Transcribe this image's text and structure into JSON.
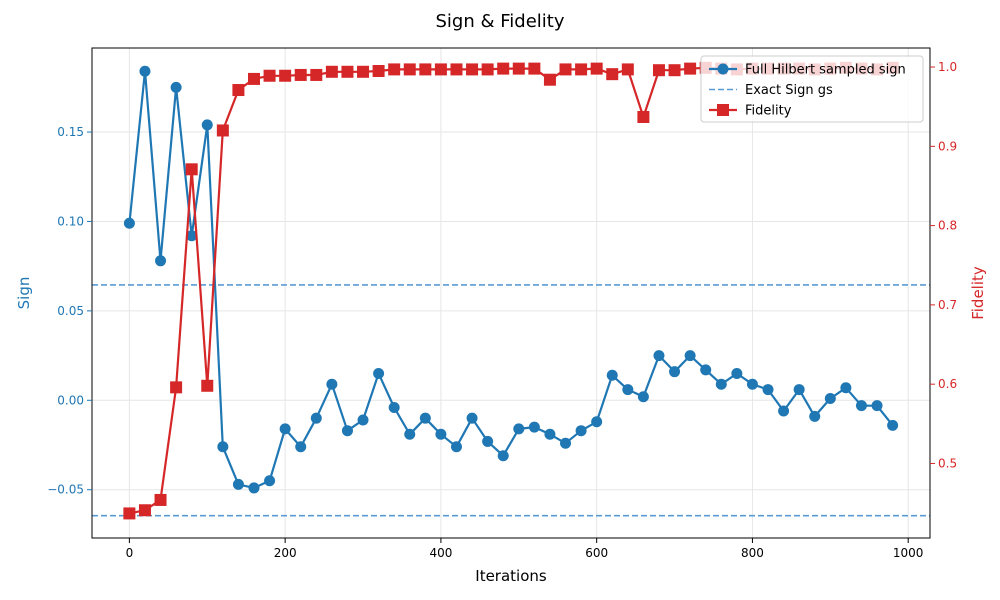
{
  "chart_data": {
    "type": "line",
    "title": "Sign & Fidelity",
    "xlabel": "Iterations",
    "ylabel_left": "Sign",
    "ylabel_right": "Fidelity",
    "xlim": [
      -48,
      1028
    ],
    "ylim_left": [
      -0.077,
      0.197
    ],
    "ylim_right": [
      0.406,
      1.024
    ],
    "x_ticks": [
      0,
      200,
      400,
      600,
      800,
      1000
    ],
    "y_ticks_left": [
      -0.05,
      0.0,
      0.05,
      0.1,
      0.15
    ],
    "y_tick_labels_left": [
      "−0.05",
      "0.00",
      "0.05",
      "0.10",
      "0.15"
    ],
    "y_ticks_right": [
      0.5,
      0.6,
      0.7,
      0.8,
      0.9,
      1.0
    ],
    "y_tick_labels_right": [
      "0.5",
      "0.6",
      "0.7",
      "0.8",
      "0.9",
      "1.0"
    ],
    "grid": true,
    "legend_position": "top-right",
    "colors": {
      "sign": "#1f77b4",
      "exact": "#5b9bd5",
      "fidelity": "#d62728"
    },
    "x": [
      0,
      20,
      40,
      60,
      80,
      100,
      120,
      140,
      160,
      180,
      200,
      220,
      240,
      260,
      280,
      300,
      320,
      340,
      360,
      380,
      400,
      420,
      440,
      460,
      480,
      500,
      520,
      540,
      560,
      580,
      600,
      620,
      640,
      660,
      680,
      700,
      720,
      740,
      760,
      780,
      800,
      820,
      840,
      860,
      880,
      900,
      920,
      940,
      960,
      980
    ],
    "series": [
      {
        "name": "Full Hilbert sampled sign",
        "axis": "left",
        "marker": "circle",
        "values": [
          0.099,
          0.184,
          0.078,
          0.175,
          0.092,
          0.154,
          -0.026,
          -0.047,
          -0.049,
          -0.045,
          -0.016,
          -0.026,
          -0.01,
          0.009,
          -0.017,
          -0.011,
          0.015,
          -0.004,
          -0.019,
          -0.01,
          -0.019,
          -0.026,
          -0.01,
          -0.023,
          -0.031,
          -0.016,
          -0.015,
          -0.019,
          -0.024,
          -0.017,
          -0.012,
          0.014,
          0.006,
          0.002,
          0.025,
          0.016,
          0.025,
          0.017,
          0.009,
          0.015,
          0.009,
          0.006,
          -0.006,
          0.006,
          -0.009,
          0.001,
          0.007,
          -0.003,
          -0.003,
          -0.014
        ]
      },
      {
        "name": "Fidelity",
        "axis": "right",
        "marker": "square",
        "values": [
          0.437,
          0.441,
          0.454,
          0.596,
          0.871,
          0.598,
          0.92,
          0.971,
          0.985,
          0.989,
          0.989,
          0.99,
          0.99,
          0.994,
          0.994,
          0.994,
          0.995,
          0.997,
          0.997,
          0.997,
          0.997,
          0.997,
          0.997,
          0.997,
          0.998,
          0.998,
          0.998,
          0.984,
          0.997,
          0.997,
          0.998,
          0.991,
          0.997,
          0.937,
          0.996,
          0.996,
          0.998,
          0.999,
          0.998,
          0.997,
          0.998,
          0.998,
          0.998,
          0.998,
          0.997,
          0.998,
          0.999,
          0.998,
          0.997,
          0.999
        ]
      }
    ],
    "reference_lines": [
      {
        "name": "Exact Sign gs",
        "axis": "left",
        "values": [
          0.0645,
          -0.0645
        ]
      }
    ]
  }
}
